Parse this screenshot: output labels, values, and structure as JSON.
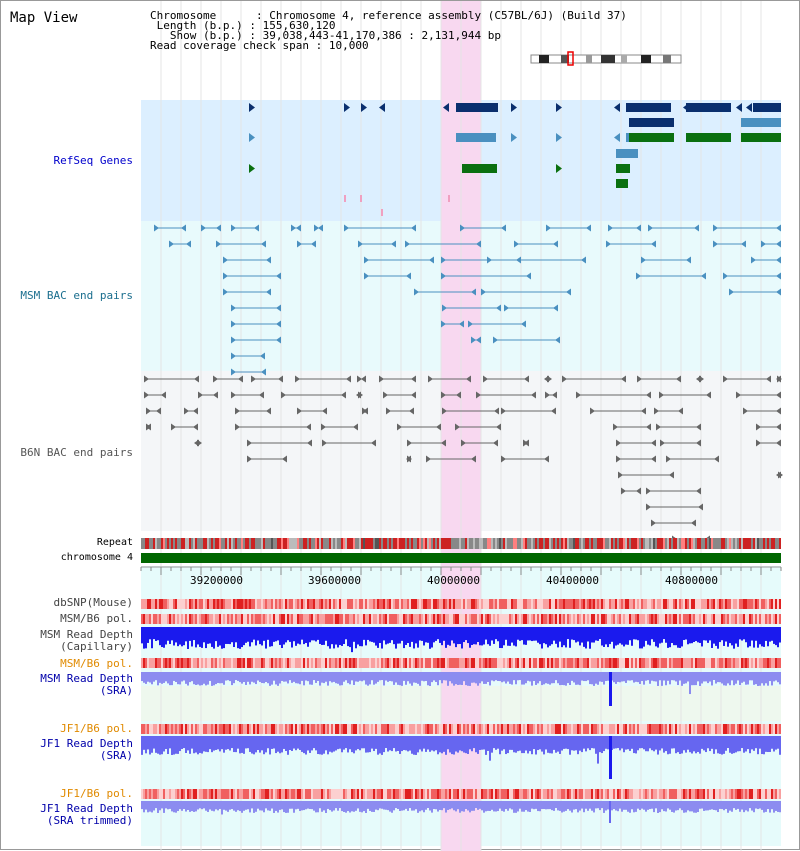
{
  "page": {
    "title": "Map View"
  },
  "info": {
    "chromosome_key": "Chromosome",
    "chromosome_val": "Chromosome 4, reference assembly (C57BL/6J) (Build 37)",
    "length_key": "Length (b.p.)",
    "length_val": "155,630,120",
    "show_key": "Show (b.p.)",
    "show_val": "39,038,443-41,170,386 : 2,131,944 bp",
    "span_key": "Read coverage check span",
    "span_val": "10,000"
  },
  "tracks": {
    "refseq": {
      "label": "RefSeq Genes",
      "color": "#0000cc"
    },
    "msm_bac": {
      "label": "MSM BAC end pairs",
      "color": "#1a6e8e"
    },
    "b6n_bac": {
      "label": "B6N BAC end pairs",
      "color": "#555555"
    },
    "repeat": {
      "label": "Repeat"
    },
    "chromosome": {
      "label": "chromosome 4",
      "color": "#006600"
    },
    "dbsnp": {
      "label": "dbSNP(Mouse)",
      "color": "#444444"
    },
    "msm_b6_pol_1": {
      "label": "MSM/B6 pol.",
      "color": "#444444"
    },
    "msm_depth_cap": {
      "label": "MSM Read Depth\n(Capillary)",
      "color": "#444444"
    },
    "msm_b6_pol_2": {
      "label": "MSM/B6 pol.",
      "color": "#e08a00"
    },
    "msm_depth_sra": {
      "label": "MSM Read Depth\n(SRA)",
      "color": "#0000aa"
    },
    "jf1_b6_pol_1": {
      "label": "JF1/B6 pol.",
      "color": "#e08a00"
    },
    "jf1_depth_sra": {
      "label": "JF1 Read Depth\n(SRA)",
      "color": "#0000aa"
    },
    "jf1_b6_pol_2": {
      "label": "JF1/B6 pol.",
      "color": "#e08a00"
    },
    "jf1_depth_trim": {
      "label": "JF1 Read Depth\n(SRA trimmed)",
      "color": "#0000aa"
    }
  },
  "axis": {
    "ticks": [
      "39200000",
      "39600000",
      "40000000",
      "40400000",
      "40800000"
    ]
  },
  "colors": {
    "highlight": "#f8d8f0",
    "refseq_bg": "#dcefff",
    "bac_bg": "#e8fafc",
    "dark_gene": "#0a2f6e",
    "mid_gene": "#4a90c0",
    "green_gene": "#0a7010",
    "read_blue": "#2222ee",
    "read_lavender": "#8888ee",
    "pol_red": "#e03030"
  }
}
